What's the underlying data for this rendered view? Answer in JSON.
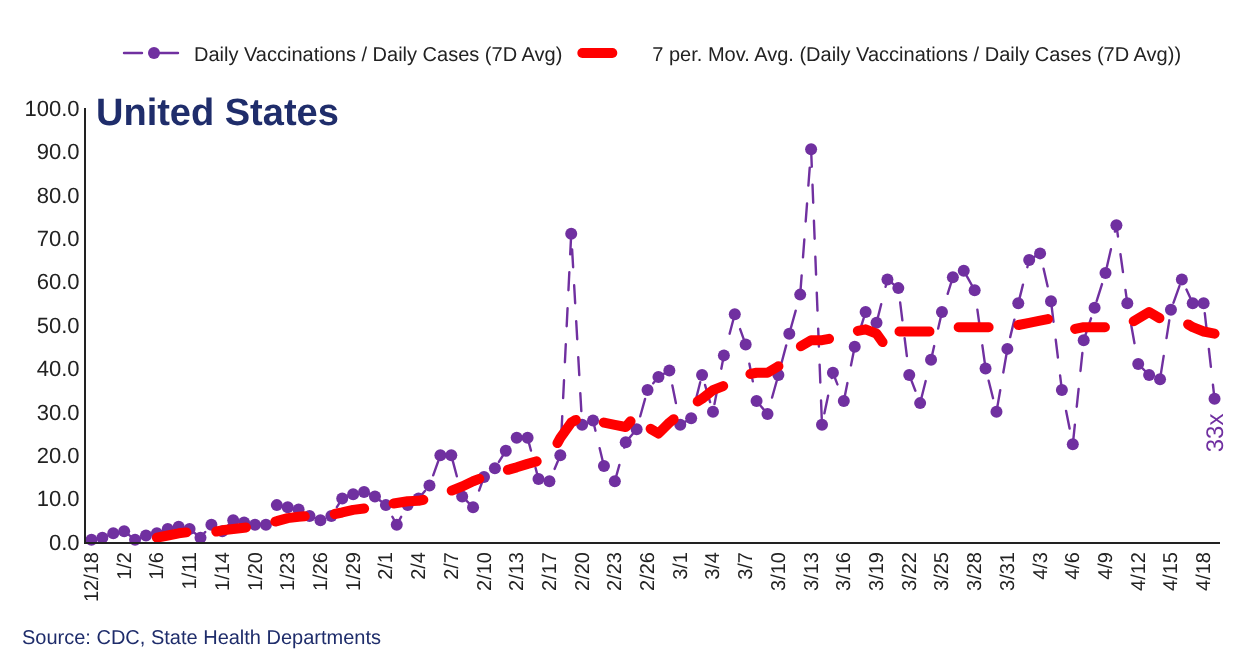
{
  "chart_data": {
    "type": "line",
    "title": "United States",
    "categories": [
      "12/18",
      null,
      null,
      "1/2",
      null,
      null,
      "1/6",
      null,
      null,
      "1/11",
      null,
      null,
      "1/14",
      null,
      null,
      "1/20",
      null,
      null,
      "1/23",
      null,
      null,
      "1/26",
      null,
      null,
      "1/29",
      null,
      null,
      "2/1",
      null,
      null,
      "2/4",
      null,
      null,
      "2/7",
      null,
      null,
      "2/10",
      null,
      null,
      "2/13",
      null,
      null,
      "2/17",
      null,
      null,
      "2/20",
      null,
      null,
      "2/23",
      null,
      null,
      "2/26",
      null,
      null,
      "3/1",
      null,
      null,
      "3/4",
      null,
      null,
      "3/7",
      null,
      null,
      "3/10",
      null,
      null,
      "3/13",
      null,
      null,
      "3/16",
      null,
      null,
      "3/19",
      null,
      null,
      "3/22",
      null,
      null,
      "3/25",
      null,
      null,
      "3/28",
      null,
      null,
      "3/31",
      null,
      null,
      "4/3",
      null,
      null,
      "4/6",
      null,
      null,
      "4/9",
      null,
      null,
      "4/12",
      null,
      null,
      "4/15",
      null,
      null,
      "4/18",
      null
    ],
    "series": [
      {
        "name": "Daily Vaccinations / Daily Cases (7D Avg)",
        "color": "#7030a0",
        "marker": "circle",
        "line_style": "dashed",
        "values": [
          0.5,
          1,
          2,
          2.5,
          0.5,
          1.5,
          2,
          3,
          3.5,
          3,
          1,
          4,
          2.5,
          5,
          4.5,
          4,
          4,
          8.5,
          8,
          7.5,
          6,
          5,
          6,
          10,
          11,
          11.5,
          10.5,
          8.5,
          4,
          8.5,
          10,
          13,
          20,
          20,
          10.5,
          8,
          15,
          17,
          21,
          24,
          24,
          14.5,
          14,
          20,
          71,
          27,
          28,
          17.5,
          14,
          23,
          26,
          35,
          38,
          39.5,
          27,
          28.5,
          38.5,
          30,
          43,
          52.5,
          45.5,
          32.5,
          29.5,
          38.5,
          48,
          57,
          90.5,
          27,
          39,
          32.5,
          45,
          53,
          50.5,
          60.5,
          58.5,
          38.5,
          32,
          42,
          53,
          61,
          62.5,
          58,
          40,
          30,
          44.5,
          55,
          65,
          66.5,
          55.5,
          35,
          22.5,
          46.5,
          54,
          62,
          73,
          55,
          41,
          38.5,
          37.5,
          53.5,
          60.5,
          55,
          55,
          33
        ]
      },
      {
        "name": "7 per. Mov. Avg. (Daily Vaccinations / Daily Cases (7D Avg))",
        "color": "#ff0000",
        "marker": "none",
        "line_style": "dashed",
        "values": [
          null,
          null,
          null,
          null,
          null,
          null,
          1,
          1.5,
          2,
          2.3,
          2.2,
          2.2,
          2.7,
          3,
          3.3,
          3.6,
          4.2,
          4.8,
          5.5,
          5.8,
          6,
          6.2,
          6.3,
          6.8,
          7.4,
          7.7,
          7.9,
          8.6,
          9,
          9.4,
          9.5,
          10,
          10.7,
          11.8,
          12.8,
          14,
          15,
          15.8,
          16.5,
          17.2,
          18,
          18.7,
          19.4,
          24,
          27.5,
          29,
          28.5,
          27.5,
          27,
          26.5,
          29.5,
          26.5,
          25,
          27.5,
          29.5,
          31.5,
          33,
          35,
          36,
          37.5,
          38.5,
          39,
          39,
          40.5,
          43,
          45,
          46.5,
          46.5,
          47,
          48,
          48.5,
          49,
          48,
          44.5,
          48.5,
          48.5,
          48.5,
          48.5,
          48.5,
          49.5,
          49.5,
          49.5,
          49.5,
          49.5,
          50,
          50,
          50.5,
          51,
          51.5,
          50,
          49,
          49.5,
          49.5,
          49.5,
          49.5,
          50,
          51.5,
          53,
          51.5,
          51,
          51,
          49.5,
          48.5,
          48
        ]
      }
    ],
    "ylim": [
      0,
      100
    ],
    "yticks": [
      {
        "value": 0,
        "label": "0.0"
      },
      {
        "value": 10,
        "label": "10.0"
      },
      {
        "value": 20,
        "label": "20.0"
      },
      {
        "value": 30,
        "label": "30.0"
      },
      {
        "value": 40,
        "label": "40.0"
      },
      {
        "value": 50,
        "label": "50.0"
      },
      {
        "value": 60,
        "label": "60.0"
      },
      {
        "value": 70,
        "label": "70.0"
      },
      {
        "value": 80,
        "label": "80.0"
      },
      {
        "value": 90,
        "label": "90.0"
      },
      {
        "value": 100,
        "label": "100.0"
      }
    ],
    "grid": false,
    "legend": "top",
    "annotations": [
      {
        "text": "33x",
        "y": 33
      },
      "Source: CDC, State Health Departments"
    ]
  }
}
